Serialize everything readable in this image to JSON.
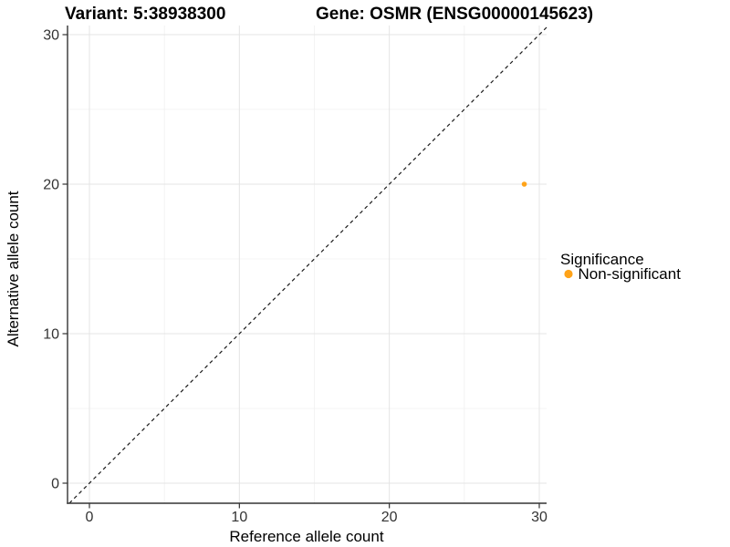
{
  "titles": {
    "variant": "Variant: 5:38938300",
    "gene": "Gene: OSMR (ENSG00000145623)"
  },
  "axes": {
    "x_title": "Reference allele count",
    "y_title": "Alternative allele count"
  },
  "legend": {
    "title": "Significance",
    "items": [
      {
        "label": "Non-significant",
        "color": "#FFA319"
      }
    ]
  },
  "chart_data": {
    "type": "scatter",
    "title": "Variant: 5:38938300 | Gene: OSMR (ENSG00000145623)",
    "xlabel": "Reference allele count",
    "ylabel": "Alternative allele count",
    "xlim": [
      -1.5,
      30.5
    ],
    "ylim": [
      -1.3,
      30.6
    ],
    "x_ticks": [
      0,
      10,
      20,
      30
    ],
    "y_ticks": [
      0,
      10,
      20,
      30
    ],
    "x_minor_ticks": [
      5,
      15,
      25
    ],
    "y_minor_ticks": [
      5,
      15,
      25
    ],
    "grid": true,
    "legend_position": "right",
    "identity_line": {
      "style": "dashed",
      "equation": "y = x",
      "color": "#1A1A1A"
    },
    "series": [
      {
        "name": "Non-significant",
        "color": "#FFA319",
        "points": [
          {
            "x": 29,
            "y": 20
          }
        ]
      }
    ]
  },
  "style": {
    "background": "#FFFFFF",
    "grid_major": "#E4E4E4",
    "grid_minor": "#F0F0F0",
    "axis_line": "#333333",
    "tick_mark": "#333333",
    "tick_label": "#333333",
    "dashed_line": "#1A1A1A",
    "point_fill": "#FFA319"
  }
}
